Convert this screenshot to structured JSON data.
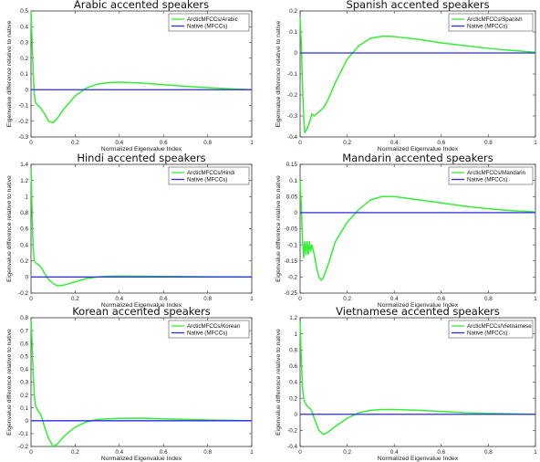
{
  "colors": {
    "accented": "#33ee33",
    "native": "#2a2aee"
  },
  "chart_data": [
    {
      "type": "line",
      "title": "Arabic accented speakers",
      "xlabel": "Normalized Eigenvalue Index",
      "ylabel": "Eigenvalue difference relative to native",
      "xlim": [
        0,
        1
      ],
      "ylim": [
        -0.3,
        0.5
      ],
      "xticks": [
        "0",
        "0.2",
        "0.4",
        "0.6",
        "0.8",
        "1"
      ],
      "yticks": [
        "-0.3",
        "-0.2",
        "-0.1",
        "0",
        "0.1",
        "0.2",
        "0.3",
        "0.4",
        "0.5"
      ],
      "legend_position": "top-right",
      "series": [
        {
          "name": "ArcticMFCCs/Arabic",
          "x": [
            0,
            0.005,
            0.01,
            0.015,
            0.02,
            0.03,
            0.04,
            0.06,
            0.08,
            0.1,
            0.12,
            0.15,
            0.2,
            0.25,
            0.3,
            0.35,
            0.4,
            0.5,
            0.6,
            0.7,
            0.8,
            0.9,
            1
          ],
          "y": [
            0.5,
            0.3,
            0.1,
            -0.03,
            -0.08,
            -0.1,
            -0.11,
            -0.15,
            -0.2,
            -0.21,
            -0.18,
            -0.12,
            -0.04,
            0.01,
            0.035,
            0.045,
            0.048,
            0.042,
            0.032,
            0.022,
            0.013,
            0.006,
            0
          ]
        },
        {
          "name": "Native (MFCCs)",
          "x": [
            0,
            1
          ],
          "y": [
            0,
            0
          ]
        }
      ]
    },
    {
      "type": "line",
      "title": "Spanish accented speakers",
      "xlabel": "Normalized Eigenvalue Index",
      "ylabel": "Eigenvalue difference relative to native",
      "xlim": [
        0,
        1
      ],
      "ylim": [
        -0.4,
        0.2
      ],
      "xticks": [
        "0",
        "0.2",
        "0.4",
        "0.6",
        "0.8",
        "1"
      ],
      "yticks": [
        "-0.4",
        "-0.3",
        "-0.2",
        "-0.1",
        "0",
        "0.1",
        "0.2"
      ],
      "legend_position": "top-right",
      "series": [
        {
          "name": "ArcticMFCCs/Spanish",
          "x": [
            0,
            0.005,
            0.01,
            0.015,
            0.02,
            0.03,
            0.04,
            0.05,
            0.06,
            0.08,
            0.1,
            0.12,
            0.15,
            0.2,
            0.25,
            0.3,
            0.35,
            0.4,
            0.5,
            0.6,
            0.7,
            0.8,
            0.9,
            1
          ],
          "y": [
            0.17,
            0.05,
            -0.15,
            -0.3,
            -0.38,
            -0.36,
            -0.33,
            -0.29,
            -0.3,
            -0.28,
            -0.26,
            -0.22,
            -0.14,
            -0.03,
            0.035,
            0.07,
            0.08,
            0.078,
            0.065,
            0.048,
            0.035,
            0.022,
            0.012,
            0.003
          ]
        },
        {
          "name": "Native (MFCCs)",
          "x": [
            0,
            1
          ],
          "y": [
            0,
            0
          ]
        }
      ]
    },
    {
      "type": "line",
      "title": "Hindi accented speakers",
      "xlabel": "Normalized Eigenvalue Index",
      "ylabel": "Eigenvalue difference relative to native",
      "xlim": [
        0,
        1
      ],
      "ylim": [
        -0.2,
        1.4
      ],
      "xticks": [
        "0",
        "0.2",
        "0.4",
        "0.6",
        "0.8",
        "1"
      ],
      "yticks": [
        "-0.2",
        "0",
        "0.2",
        "0.4",
        "0.6",
        "0.8",
        "1",
        "1.2",
        "1.4"
      ],
      "legend_position": "top-right",
      "series": [
        {
          "name": "ArcticMFCCs/Hindi",
          "x": [
            0,
            0.005,
            0.01,
            0.015,
            0.02,
            0.03,
            0.04,
            0.05,
            0.06,
            0.08,
            0.1,
            0.12,
            0.15,
            0.2,
            0.25,
            0.3,
            0.35,
            0.4,
            0.5,
            0.6,
            0.7,
            0.8,
            0.9,
            1
          ],
          "y": [
            1.35,
            0.8,
            0.35,
            0.2,
            0.18,
            0.16,
            0.14,
            0.1,
            0.05,
            -0.03,
            -0.08,
            -0.11,
            -0.1,
            -0.06,
            -0.02,
            0,
            0.01,
            0.012,
            0.01,
            0.007,
            0.005,
            0.003,
            0.001,
            0
          ]
        },
        {
          "name": "Native (MFCCs)",
          "x": [
            0,
            1
          ],
          "y": [
            0,
            0
          ]
        }
      ]
    },
    {
      "type": "line",
      "title": "Mandarin accented speakers",
      "xlabel": "Normalized Eigenvalue Index",
      "ylabel": "Eigenvalue difference relative to native",
      "xlim": [
        0,
        1
      ],
      "ylim": [
        -0.25,
        0.15
      ],
      "xticks": [
        "0",
        "0.2",
        "0.4",
        "0.6",
        "0.8",
        "1"
      ],
      "yticks": [
        "-0.25",
        "-0.2",
        "-0.15",
        "-0.1",
        "-0.05",
        "0",
        "0.05",
        "0.1",
        "0.15"
      ],
      "legend_position": "top-right",
      "series": [
        {
          "name": "ArcticMFCCs/Mandarin",
          "x": [
            0,
            0.005,
            0.01,
            0.015,
            0.02,
            0.025,
            0.03,
            0.035,
            0.04,
            0.045,
            0.05,
            0.06,
            0.07,
            0.08,
            0.09,
            0.1,
            0.12,
            0.15,
            0.2,
            0.25,
            0.3,
            0.35,
            0.4,
            0.5,
            0.6,
            0.7,
            0.8,
            0.9,
            1
          ],
          "y": [
            0.1,
            0.02,
            -0.08,
            -0.14,
            -0.09,
            -0.13,
            -0.09,
            -0.13,
            -0.09,
            -0.12,
            -0.1,
            -0.13,
            -0.17,
            -0.2,
            -0.21,
            -0.2,
            -0.16,
            -0.09,
            -0.03,
            0.01,
            0.04,
            0.05,
            0.05,
            0.04,
            0.03,
            0.02,
            0.012,
            0.006,
            0.002
          ]
        },
        {
          "name": "Native (MFCCs)",
          "x": [
            0,
            1
          ],
          "y": [
            0,
            0
          ]
        }
      ]
    },
    {
      "type": "line",
      "title": "Korean accented speakers",
      "xlabel": "Normalized Eigenvalue Index",
      "ylabel": "Eigenvalue difference relative to native",
      "xlim": [
        0,
        1
      ],
      "ylim": [
        -0.2,
        0.8
      ],
      "xticks": [
        "0",
        "0.2",
        "0.4",
        "0.6",
        "0.8",
        "1"
      ],
      "yticks": [
        "-0.2",
        "-0.1",
        "0",
        "0.1",
        "0.2",
        "0.3",
        "0.4",
        "0.5",
        "0.6",
        "0.7",
        "0.8"
      ],
      "legend_position": "top-right",
      "series": [
        {
          "name": "ArcticMFCCs/Korean",
          "x": [
            0,
            0.005,
            0.01,
            0.015,
            0.02,
            0.03,
            0.04,
            0.05,
            0.06,
            0.08,
            0.1,
            0.12,
            0.15,
            0.2,
            0.25,
            0.3,
            0.35,
            0.4,
            0.5,
            0.6,
            0.7,
            0.8,
            0.9,
            1
          ],
          "y": [
            0.78,
            0.6,
            0.35,
            0.2,
            0.12,
            0.08,
            0.06,
            0.02,
            -0.04,
            -0.14,
            -0.2,
            -0.18,
            -0.12,
            -0.05,
            -0.01,
            0.01,
            0.015,
            0.018,
            0.02,
            0.015,
            0.01,
            0.006,
            0.003,
            0
          ]
        },
        {
          "name": "Native (MFCCs)",
          "x": [
            0,
            1
          ],
          "y": [
            0,
            0
          ]
        }
      ]
    },
    {
      "type": "line",
      "title": "Vietnamese accented speakers",
      "xlabel": "Normalized Eigenvalue Index",
      "ylabel": "Eigenvalue difference relative to native",
      "xlim": [
        0,
        1
      ],
      "ylim": [
        -0.4,
        1.2
      ],
      "xticks": [
        "0",
        "0.2",
        "0.4",
        "0.6",
        "0.8",
        "1"
      ],
      "yticks": [
        "-0.4",
        "-0.2",
        "0",
        "0.2",
        "0.4",
        "0.6",
        "0.8",
        "1",
        "1.2"
      ],
      "legend_position": "top-right",
      "series": [
        {
          "name": "ArcticMFCCs/Vietnamese",
          "x": [
            0,
            0.005,
            0.01,
            0.015,
            0.02,
            0.03,
            0.04,
            0.05,
            0.06,
            0.08,
            0.1,
            0.12,
            0.15,
            0.2,
            0.25,
            0.3,
            0.35,
            0.4,
            0.5,
            0.6,
            0.7,
            0.8,
            0.9,
            1
          ],
          "y": [
            1.15,
            0.7,
            0.35,
            0.2,
            0.15,
            0.1,
            0.08,
            0.04,
            -0.05,
            -0.2,
            -0.25,
            -0.22,
            -0.15,
            -0.05,
            0.02,
            0.05,
            0.06,
            0.06,
            0.05,
            0.035,
            0.02,
            0.012,
            0.005,
            0
          ]
        },
        {
          "name": "Native (MFCCs)",
          "x": [
            0,
            1
          ],
          "y": [
            0,
            0
          ]
        }
      ]
    }
  ]
}
